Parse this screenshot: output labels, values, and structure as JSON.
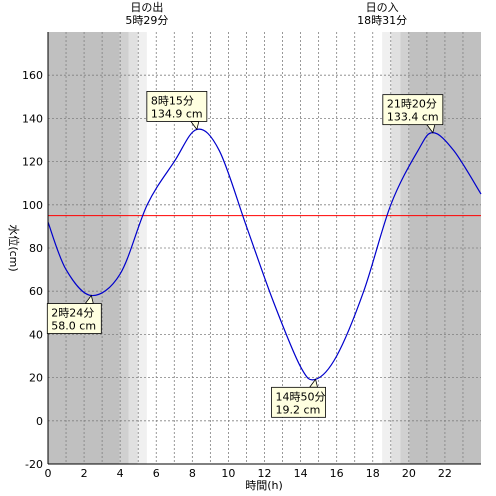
{
  "chart_data": {
    "type": "line",
    "xlabel": "時間(h)",
    "ylabel": "水位(cm)",
    "xlim": [
      0,
      24
    ],
    "ylim": [
      -20,
      180
    ],
    "xticks": [
      0,
      2,
      4,
      6,
      8,
      10,
      12,
      14,
      16,
      18,
      20,
      22
    ],
    "yticks": [
      -20,
      0,
      20,
      40,
      60,
      80,
      100,
      120,
      140,
      160
    ],
    "grid": true,
    "reference_line": {
      "y": 95,
      "color": "#ff0000"
    },
    "sunrise": {
      "title": "日の出",
      "time": "5時29分",
      "hour": 5.48
    },
    "sunset": {
      "title": "日の入",
      "time": "18時31分",
      "hour": 18.52
    },
    "series": [
      {
        "color": "#0000cc",
        "x": [
          0,
          1,
          2.4,
          4,
          5.5,
          7,
          8.25,
          9.5,
          11,
          12.5,
          14,
          14.83,
          16,
          17.5,
          19,
          20.5,
          21.33,
          22.5,
          24
        ],
        "y": [
          92,
          70,
          58.0,
          68,
          100,
          120,
          134.9,
          125,
          90,
          55,
          25,
          19.2,
          30,
          60,
          100,
          125,
          133.4,
          125,
          105
        ]
      }
    ],
    "annotations": [
      {
        "time": "2時24分",
        "value": "58.0 cm",
        "x": 2.4,
        "y": 58.0,
        "side": "below"
      },
      {
        "time": "8時15分",
        "value": "134.9 cm",
        "x": 8.25,
        "y": 134.9,
        "side": "above"
      },
      {
        "time": "14時50分",
        "value": "19.2 cm",
        "x": 14.83,
        "y": 19.2,
        "side": "below"
      },
      {
        "time": "21時20分",
        "value": "133.4 cm",
        "x": 21.33,
        "y": 133.4,
        "side": "above"
      }
    ]
  },
  "colors": {
    "night": "#c0c0c0",
    "twilight_dark": "#d0d0d0",
    "twilight_mid": "#e0e0e0",
    "twilight_light": "#f0f0f0",
    "day": "#ffffff",
    "line": "#0000cc",
    "reference": "#ff0000",
    "callout_fill": "#ffffe0"
  }
}
